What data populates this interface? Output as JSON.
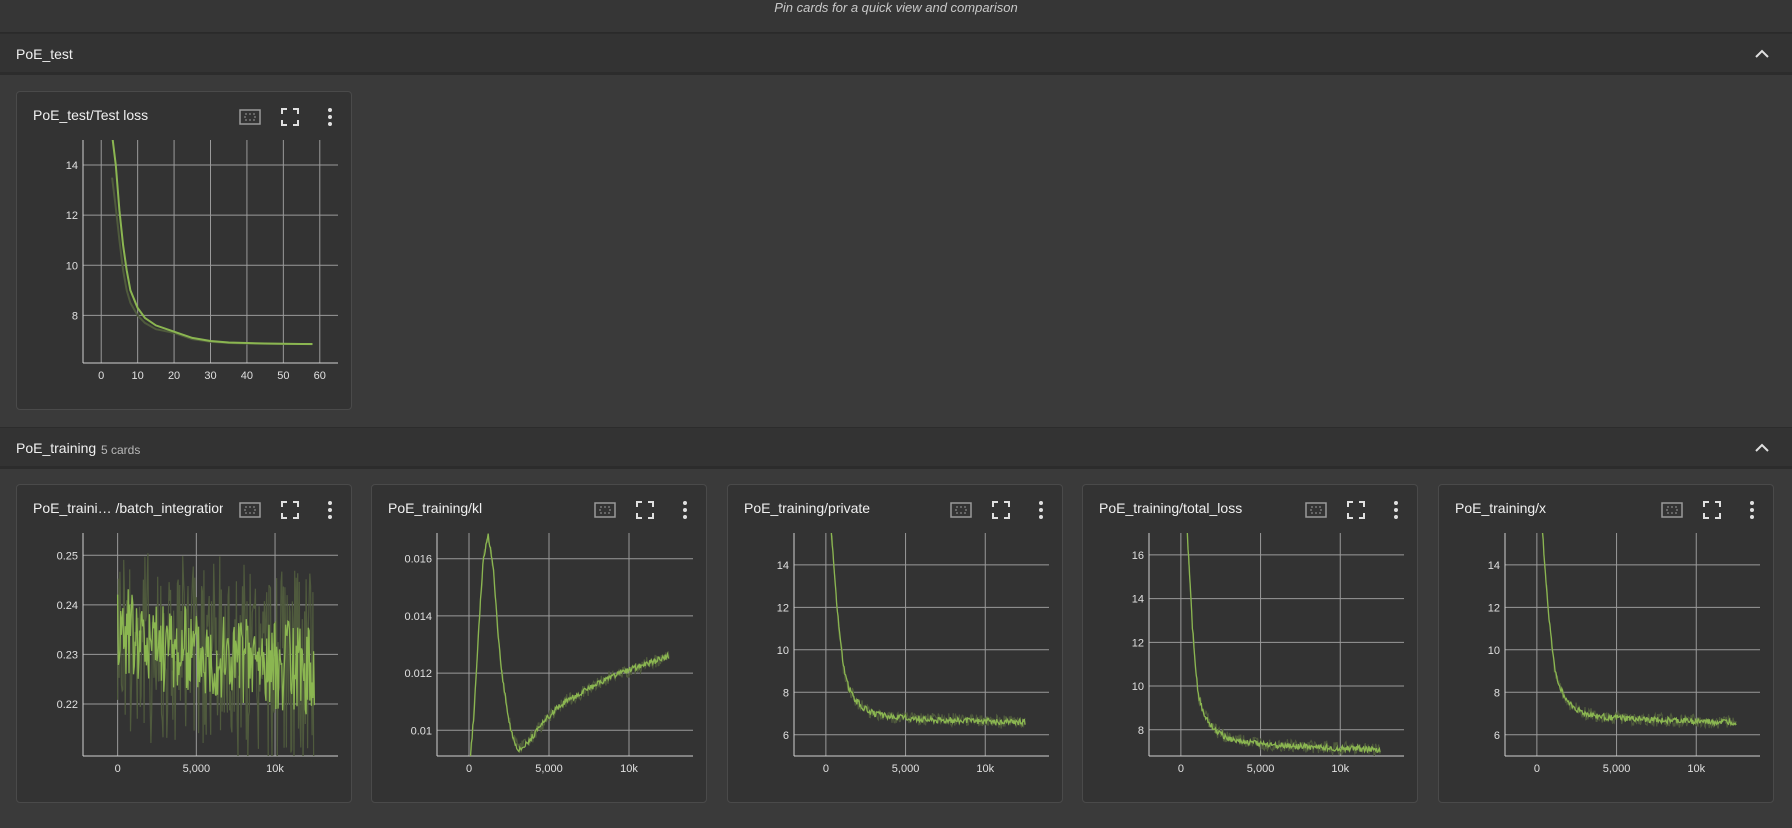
{
  "header": {
    "pin_hint": "Pin cards for a quick view and comparison"
  },
  "colors": {
    "accent": "#8bb651",
    "raw": "#4f5a3d",
    "grid": "#9a9a9a",
    "axis": "#d0d0d0"
  },
  "icons": {
    "collapse": "chevron-up-icon",
    "fit": "fit-to-data-icon",
    "fullscreen": "fullscreen-icon",
    "menu": "more-vert-icon"
  },
  "groups": [
    {
      "title": "PoE_test",
      "count_label": ""
    },
    {
      "title": "PoE_training",
      "count_label": "5 cards"
    }
  ],
  "cards": [
    {
      "title": "PoE_test/Test loss"
    },
    {
      "title": "PoE_traini… /batch_integration"
    },
    {
      "title": "PoE_training/kl"
    },
    {
      "title": "PoE_training/private"
    },
    {
      "title": "PoE_training/total_loss"
    },
    {
      "title": "PoE_training/x"
    }
  ],
  "chart_data": [
    {
      "type": "line",
      "title": "PoE_test/Test loss",
      "xlim": [
        -5,
        65
      ],
      "ylim": [
        6.1,
        15
      ],
      "x_ticks": [
        0,
        10,
        20,
        30,
        40,
        50,
        60
      ],
      "x_tick_labels": [
        "0",
        "10",
        "20",
        "30",
        "40",
        "50",
        "60"
      ],
      "y_ticks": [
        8,
        10,
        12,
        14
      ],
      "y_tick_labels": [
        "8",
        "10",
        "12",
        "14"
      ],
      "grid": true,
      "series": [
        {
          "x": [
            3,
            4,
            5,
            6,
            7,
            8,
            10,
            12,
            15,
            20,
            25,
            30,
            35,
            40,
            45,
            50,
            55,
            58
          ],
          "y": [
            15.2,
            14,
            12.2,
            10.8,
            9.8,
            9.0,
            8.3,
            7.9,
            7.6,
            7.35,
            7.1,
            6.98,
            6.92,
            6.9,
            6.88,
            6.87,
            6.86,
            6.86
          ]
        }
      ],
      "raw_series": [
        {
          "x": [
            3,
            4,
            5,
            6,
            7,
            8,
            10,
            12,
            15,
            20,
            25,
            30,
            35,
            40,
            45,
            50,
            55,
            58
          ],
          "y": [
            13.5,
            12.3,
            11.0,
            9.8,
            9.0,
            8.5,
            8.0,
            7.7,
            7.45,
            7.3,
            7.05,
            6.95,
            6.9,
            6.88,
            6.87,
            6.86,
            6.86,
            6.85
          ]
        }
      ]
    },
    {
      "type": "line",
      "title": "PoE_training/batch_integration",
      "xlim": [
        -2200,
        14000
      ],
      "ylim": [
        0.2095,
        0.2545
      ],
      "x_ticks": [
        0,
        5000,
        10000
      ],
      "x_tick_labels": [
        "0",
        "5,000",
        "10k"
      ],
      "y_ticks": [
        0.22,
        0.23,
        0.24,
        0.25
      ],
      "y_tick_labels": [
        "0.22",
        "0.23",
        "0.24",
        "0.25"
      ],
      "grid": true,
      "noise": "heavy",
      "series": [
        {
          "x": [
            0,
            1000,
            2000,
            4000,
            6000,
            8000,
            10000,
            12000,
            12500
          ],
          "y": [
            0.236,
            0.234,
            0.232,
            0.231,
            0.23,
            0.229,
            0.228,
            0.227,
            0.227
          ]
        }
      ]
    },
    {
      "type": "line",
      "title": "PoE_training/kl",
      "xlim": [
        -2000,
        14000
      ],
      "ylim": [
        0.0091,
        0.0169
      ],
      "x_ticks": [
        0,
        5000,
        10000
      ],
      "x_tick_labels": [
        "0",
        "5,000",
        "10k"
      ],
      "y_ticks": [
        0.01,
        0.012,
        0.014,
        0.016
      ],
      "y_tick_labels": [
        "0.01",
        "0.012",
        "0.014",
        "0.016"
      ],
      "grid": true,
      "series": [
        {
          "x": [
            0,
            300,
            600,
            900,
            1200,
            1500,
            1800,
            2100,
            2500,
            2800,
            3100,
            3500,
            4000,
            5000,
            6000,
            7000,
            8000,
            9000,
            10000,
            11000,
            12000,
            12500
          ],
          "y": [
            0.0085,
            0.0105,
            0.0135,
            0.016,
            0.0168,
            0.0158,
            0.0135,
            0.0118,
            0.0103,
            0.0097,
            0.0093,
            0.0095,
            0.0098,
            0.0105,
            0.011,
            0.0113,
            0.0116,
            0.0119,
            0.0121,
            0.0123,
            0.0125,
            0.0126
          ]
        }
      ]
    },
    {
      "type": "line",
      "title": "PoE_training/private",
      "xlim": [
        -2000,
        14000
      ],
      "ylim": [
        5,
        15.5
      ],
      "x_ticks": [
        0,
        5000,
        10000
      ],
      "x_tick_labels": [
        "0",
        "5,000",
        "10k"
      ],
      "y_ticks": [
        6,
        8,
        10,
        12,
        14
      ],
      "y_tick_labels": [
        "6",
        "8",
        "10",
        "12",
        "14"
      ],
      "grid": true,
      "series": [
        {
          "x": [
            300,
            500,
            700,
            900,
            1100,
            1400,
            1800,
            2300,
            3000,
            4000,
            5000,
            6000,
            7000,
            8000,
            9000,
            10000,
            11000,
            12000,
            12500
          ],
          "y": [
            16,
            14,
            12,
            10.5,
            9.2,
            8.3,
            7.7,
            7.3,
            7.0,
            6.85,
            6.8,
            6.75,
            6.7,
            6.7,
            6.65,
            6.65,
            6.6,
            6.6,
            6.6
          ]
        }
      ]
    },
    {
      "type": "line",
      "title": "PoE_training/total_loss",
      "xlim": [
        -2000,
        14000
      ],
      "ylim": [
        6.8,
        17
      ],
      "x_ticks": [
        0,
        5000,
        10000
      ],
      "x_tick_labels": [
        "0",
        "5,000",
        "10k"
      ],
      "y_ticks": [
        8,
        10,
        12,
        14,
        16
      ],
      "y_tick_labels": [
        "8",
        "10",
        "12",
        "14",
        "16"
      ],
      "grid": true,
      "series": [
        {
          "x": [
            400,
            550,
            700,
            900,
            1100,
            1400,
            1800,
            2300,
            3000,
            4000,
            5000,
            6000,
            7000,
            8000,
            9000,
            10000,
            11000,
            12000,
            12500
          ],
          "y": [
            17,
            15,
            13,
            11,
            9.6,
            8.8,
            8.3,
            7.9,
            7.6,
            7.45,
            7.35,
            7.3,
            7.25,
            7.2,
            7.2,
            7.15,
            7.15,
            7.1,
            7.1
          ]
        }
      ]
    },
    {
      "type": "line",
      "title": "PoE_training/x",
      "xlim": [
        -2000,
        14000
      ],
      "ylim": [
        5,
        15.5
      ],
      "x_ticks": [
        0,
        5000,
        10000
      ],
      "x_tick_labels": [
        "0",
        "5,000",
        "10k"
      ],
      "y_ticks": [
        6,
        8,
        10,
        12,
        14
      ],
      "y_tick_labels": [
        "6",
        "8",
        "10",
        "12",
        "14"
      ],
      "grid": true,
      "series": [
        {
          "x": [
            300,
            500,
            700,
            900,
            1100,
            1400,
            1800,
            2300,
            3000,
            4000,
            5000,
            6000,
            7000,
            8000,
            9000,
            10000,
            11000,
            12000,
            12500
          ],
          "y": [
            16,
            14,
            12,
            10.5,
            9.2,
            8.3,
            7.7,
            7.3,
            7.0,
            6.85,
            6.8,
            6.75,
            6.7,
            6.7,
            6.65,
            6.65,
            6.6,
            6.6,
            6.6
          ]
        }
      ]
    }
  ]
}
